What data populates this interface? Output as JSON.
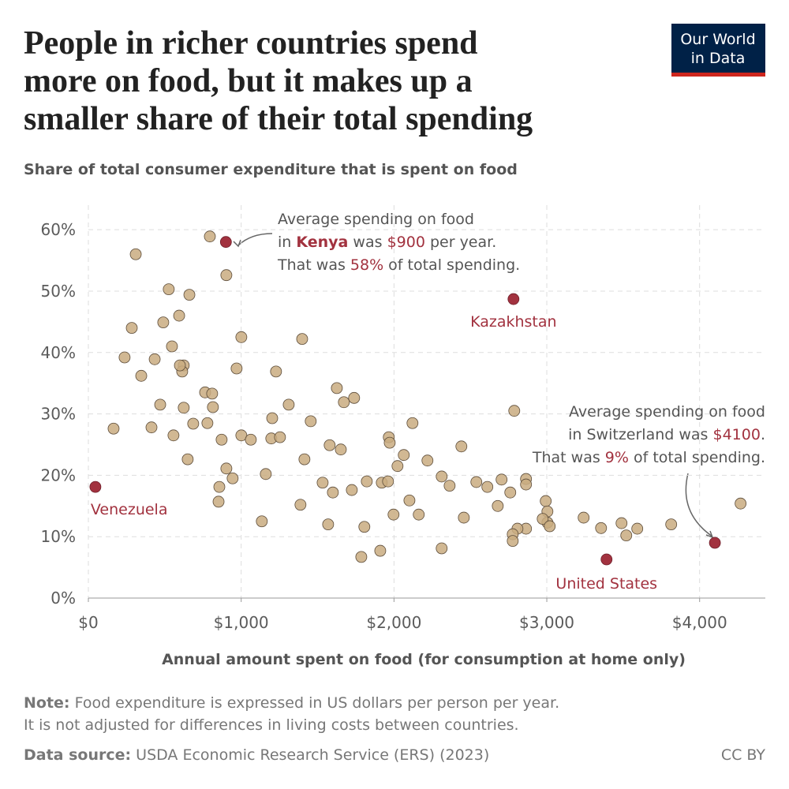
{
  "header": {
    "title_lines": [
      "People in richer countries spend",
      "more on food, but it makes up a",
      "smaller share of their total spending"
    ],
    "logo_lines": [
      "Our World",
      "in Data"
    ]
  },
  "chart_data": {
    "type": "scatter",
    "subtitle": "Share of total consumer expenditure that is spent on food",
    "x_label": "Annual amount spent on food (for consumption at home only)",
    "xlim": [
      0,
      4430
    ],
    "ylim": [
      0,
      64
    ],
    "xticks": [
      {
        "value": 0,
        "label": "$0"
      },
      {
        "value": 1000,
        "label": "$1,000"
      },
      {
        "value": 2000,
        "label": "$2,000"
      },
      {
        "value": 3000,
        "label": "$3,000"
      },
      {
        "value": 4000,
        "label": "$4,000"
      }
    ],
    "yticks": [
      {
        "value": 0,
        "label": "0%"
      },
      {
        "value": 10,
        "label": "10%"
      },
      {
        "value": 20,
        "label": "20%"
      },
      {
        "value": 30,
        "label": "30%"
      },
      {
        "value": 40,
        "label": "40%"
      },
      {
        "value": 50,
        "label": "50%"
      },
      {
        "value": 60,
        "label": "60%"
      }
    ],
    "grid": true,
    "series": [
      {
        "color": "#c9ab80",
        "x": [
          795,
          310,
          903,
          526,
          661,
          284,
          490,
          594,
          1001,
          1399,
          237,
          434,
          346,
          547,
          624,
          614,
          599,
          970,
          1228,
          764,
          810,
          815,
          470,
          624,
          1203,
          1311,
          1455,
          1626,
          1672,
          1739,
          2121,
          165,
          413,
          686,
          779,
          557,
          872,
          1001,
          1063,
          1197,
          1254,
          1966,
          1972,
          2219,
          1414,
          1579,
          1652,
          2064,
          2441,
          650,
          903,
          944,
          1161,
          857,
          1533,
          1600,
          1724,
          1822,
          1920,
          1961,
          2023,
          2101,
          2312,
          2364,
          2539,
          2611,
          2704,
          2761,
          2864,
          2864,
          852,
          1388,
          1135,
          1569,
          1806,
          1997,
          2162,
          2457,
          2679,
          2993,
          3004,
          3004,
          2973,
          3019,
          2864,
          2808,
          2777,
          2777,
          3241,
          3355,
          3489,
          3520,
          3592,
          3814,
          4268,
          1786,
          1910,
          2312,
          2787
        ],
        "y": [
          58.9,
          56.0,
          52.6,
          50.3,
          49.4,
          44.0,
          44.9,
          46.0,
          42.5,
          42.2,
          39.2,
          38.9,
          36.2,
          41.0,
          37.9,
          36.9,
          37.9,
          37.4,
          36.9,
          33.5,
          33.3,
          31.1,
          31.5,
          31.0,
          29.3,
          31.5,
          28.8,
          34.2,
          31.9,
          32.6,
          28.5,
          27.6,
          27.8,
          28.4,
          28.5,
          26.5,
          25.8,
          26.5,
          25.8,
          26.0,
          26.2,
          26.2,
          25.3,
          22.4,
          22.6,
          24.9,
          24.2,
          23.3,
          24.7,
          22.6,
          21.1,
          19.5,
          20.2,
          18.1,
          18.8,
          17.2,
          17.6,
          19.0,
          18.8,
          19.0,
          21.5,
          15.9,
          19.8,
          18.3,
          18.9,
          18.1,
          19.3,
          17.2,
          19.4,
          18.5,
          15.7,
          15.2,
          12.5,
          12.0,
          11.6,
          13.6,
          13.6,
          13.1,
          15.0,
          15.8,
          14.1,
          12.3,
          12.9,
          11.7,
          11.3,
          11.3,
          10.4,
          9.3,
          13.1,
          11.4,
          12.2,
          10.2,
          11.3,
          12.0,
          15.4,
          6.7,
          7.7,
          8.1,
          30.5
        ]
      },
      {
        "color": "#a2323f",
        "x": [
          900,
          2782,
          46,
          3391,
          4100
        ],
        "y": [
          58,
          48.7,
          18.1,
          6.3,
          9
        ],
        "labels": [
          null,
          "Kazakhstan",
          "Venezuela",
          "United States",
          null
        ]
      }
    ],
    "annotations": [
      {
        "lines": [
          [
            {
              "text": "Average spending on food"
            }
          ],
          [
            {
              "text": "in "
            },
            {
              "text": "Kenya",
              "color": "#a2323f",
              "bold": true
            },
            {
              "text": " was "
            },
            {
              "text": "$900",
              "color": "#a2323f"
            },
            {
              "text": " per year."
            }
          ],
          [
            {
              "text": "That was "
            },
            {
              "text": "58%",
              "color": "#a2323f"
            },
            {
              "text": " of total spending."
            }
          ]
        ]
      },
      {
        "lines": [
          [
            {
              "text": "Average spending on food"
            }
          ],
          [
            {
              "text": "in Switzerland was "
            },
            {
              "text": "$4100",
              "color": "#a2323f"
            },
            {
              "text": "."
            }
          ],
          [
            {
              "text": "That was "
            },
            {
              "text": "9%",
              "color": "#a2323f"
            },
            {
              "text": " of total spending."
            }
          ]
        ]
      }
    ]
  },
  "footer": {
    "note_label": "Note:",
    "note_lines": [
      " Food expenditure is expressed in US dollars per person per year.",
      "It is not adjusted for differences in living costs between countries."
    ],
    "source_label": "Data source:",
    "source": " USDA Economic Research Service (ERS) (2023)",
    "license": "CC BY"
  }
}
